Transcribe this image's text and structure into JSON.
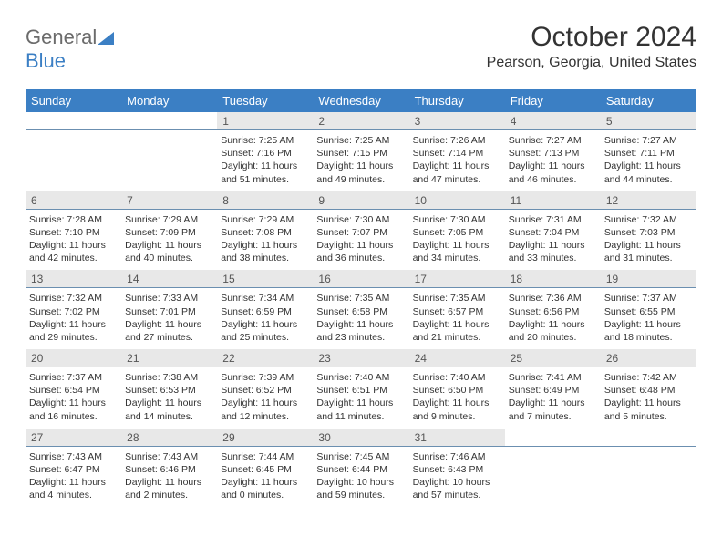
{
  "logo": {
    "general": "General",
    "blue": "Blue"
  },
  "title": "October 2024",
  "location": "Pearson, Georgia, United States",
  "header_bg": "#3b7fc4",
  "header_text_color": "#ffffff",
  "daynum_bg": "#e8e8e8",
  "border_color": "#6b8fb0",
  "text_color": "#333333",
  "body_fontsize": 10.5,
  "title_fontsize": 30,
  "days_of_week": [
    "Sunday",
    "Monday",
    "Tuesday",
    "Wednesday",
    "Thursday",
    "Friday",
    "Saturday"
  ],
  "weeks": [
    [
      null,
      null,
      {
        "n": "1",
        "sr": "Sunrise: 7:25 AM",
        "ss": "Sunset: 7:16 PM",
        "dl": "Daylight: 11 hours and 51 minutes."
      },
      {
        "n": "2",
        "sr": "Sunrise: 7:25 AM",
        "ss": "Sunset: 7:15 PM",
        "dl": "Daylight: 11 hours and 49 minutes."
      },
      {
        "n": "3",
        "sr": "Sunrise: 7:26 AM",
        "ss": "Sunset: 7:14 PM",
        "dl": "Daylight: 11 hours and 47 minutes."
      },
      {
        "n": "4",
        "sr": "Sunrise: 7:27 AM",
        "ss": "Sunset: 7:13 PM",
        "dl": "Daylight: 11 hours and 46 minutes."
      },
      {
        "n": "5",
        "sr": "Sunrise: 7:27 AM",
        "ss": "Sunset: 7:11 PM",
        "dl": "Daylight: 11 hours and 44 minutes."
      }
    ],
    [
      {
        "n": "6",
        "sr": "Sunrise: 7:28 AM",
        "ss": "Sunset: 7:10 PM",
        "dl": "Daylight: 11 hours and 42 minutes."
      },
      {
        "n": "7",
        "sr": "Sunrise: 7:29 AM",
        "ss": "Sunset: 7:09 PM",
        "dl": "Daylight: 11 hours and 40 minutes."
      },
      {
        "n": "8",
        "sr": "Sunrise: 7:29 AM",
        "ss": "Sunset: 7:08 PM",
        "dl": "Daylight: 11 hours and 38 minutes."
      },
      {
        "n": "9",
        "sr": "Sunrise: 7:30 AM",
        "ss": "Sunset: 7:07 PM",
        "dl": "Daylight: 11 hours and 36 minutes."
      },
      {
        "n": "10",
        "sr": "Sunrise: 7:30 AM",
        "ss": "Sunset: 7:05 PM",
        "dl": "Daylight: 11 hours and 34 minutes."
      },
      {
        "n": "11",
        "sr": "Sunrise: 7:31 AM",
        "ss": "Sunset: 7:04 PM",
        "dl": "Daylight: 11 hours and 33 minutes."
      },
      {
        "n": "12",
        "sr": "Sunrise: 7:32 AM",
        "ss": "Sunset: 7:03 PM",
        "dl": "Daylight: 11 hours and 31 minutes."
      }
    ],
    [
      {
        "n": "13",
        "sr": "Sunrise: 7:32 AM",
        "ss": "Sunset: 7:02 PM",
        "dl": "Daylight: 11 hours and 29 minutes."
      },
      {
        "n": "14",
        "sr": "Sunrise: 7:33 AM",
        "ss": "Sunset: 7:01 PM",
        "dl": "Daylight: 11 hours and 27 minutes."
      },
      {
        "n": "15",
        "sr": "Sunrise: 7:34 AM",
        "ss": "Sunset: 6:59 PM",
        "dl": "Daylight: 11 hours and 25 minutes."
      },
      {
        "n": "16",
        "sr": "Sunrise: 7:35 AM",
        "ss": "Sunset: 6:58 PM",
        "dl": "Daylight: 11 hours and 23 minutes."
      },
      {
        "n": "17",
        "sr": "Sunrise: 7:35 AM",
        "ss": "Sunset: 6:57 PM",
        "dl": "Daylight: 11 hours and 21 minutes."
      },
      {
        "n": "18",
        "sr": "Sunrise: 7:36 AM",
        "ss": "Sunset: 6:56 PM",
        "dl": "Daylight: 11 hours and 20 minutes."
      },
      {
        "n": "19",
        "sr": "Sunrise: 7:37 AM",
        "ss": "Sunset: 6:55 PM",
        "dl": "Daylight: 11 hours and 18 minutes."
      }
    ],
    [
      {
        "n": "20",
        "sr": "Sunrise: 7:37 AM",
        "ss": "Sunset: 6:54 PM",
        "dl": "Daylight: 11 hours and 16 minutes."
      },
      {
        "n": "21",
        "sr": "Sunrise: 7:38 AM",
        "ss": "Sunset: 6:53 PM",
        "dl": "Daylight: 11 hours and 14 minutes."
      },
      {
        "n": "22",
        "sr": "Sunrise: 7:39 AM",
        "ss": "Sunset: 6:52 PM",
        "dl": "Daylight: 11 hours and 12 minutes."
      },
      {
        "n": "23",
        "sr": "Sunrise: 7:40 AM",
        "ss": "Sunset: 6:51 PM",
        "dl": "Daylight: 11 hours and 11 minutes."
      },
      {
        "n": "24",
        "sr": "Sunrise: 7:40 AM",
        "ss": "Sunset: 6:50 PM",
        "dl": "Daylight: 11 hours and 9 minutes."
      },
      {
        "n": "25",
        "sr": "Sunrise: 7:41 AM",
        "ss": "Sunset: 6:49 PM",
        "dl": "Daylight: 11 hours and 7 minutes."
      },
      {
        "n": "26",
        "sr": "Sunrise: 7:42 AM",
        "ss": "Sunset: 6:48 PM",
        "dl": "Daylight: 11 hours and 5 minutes."
      }
    ],
    [
      {
        "n": "27",
        "sr": "Sunrise: 7:43 AM",
        "ss": "Sunset: 6:47 PM",
        "dl": "Daylight: 11 hours and 4 minutes."
      },
      {
        "n": "28",
        "sr": "Sunrise: 7:43 AM",
        "ss": "Sunset: 6:46 PM",
        "dl": "Daylight: 11 hours and 2 minutes."
      },
      {
        "n": "29",
        "sr": "Sunrise: 7:44 AM",
        "ss": "Sunset: 6:45 PM",
        "dl": "Daylight: 11 hours and 0 minutes."
      },
      {
        "n": "30",
        "sr": "Sunrise: 7:45 AM",
        "ss": "Sunset: 6:44 PM",
        "dl": "Daylight: 10 hours and 59 minutes."
      },
      {
        "n": "31",
        "sr": "Sunrise: 7:46 AM",
        "ss": "Sunset: 6:43 PM",
        "dl": "Daylight: 10 hours and 57 minutes."
      },
      null,
      null
    ]
  ]
}
